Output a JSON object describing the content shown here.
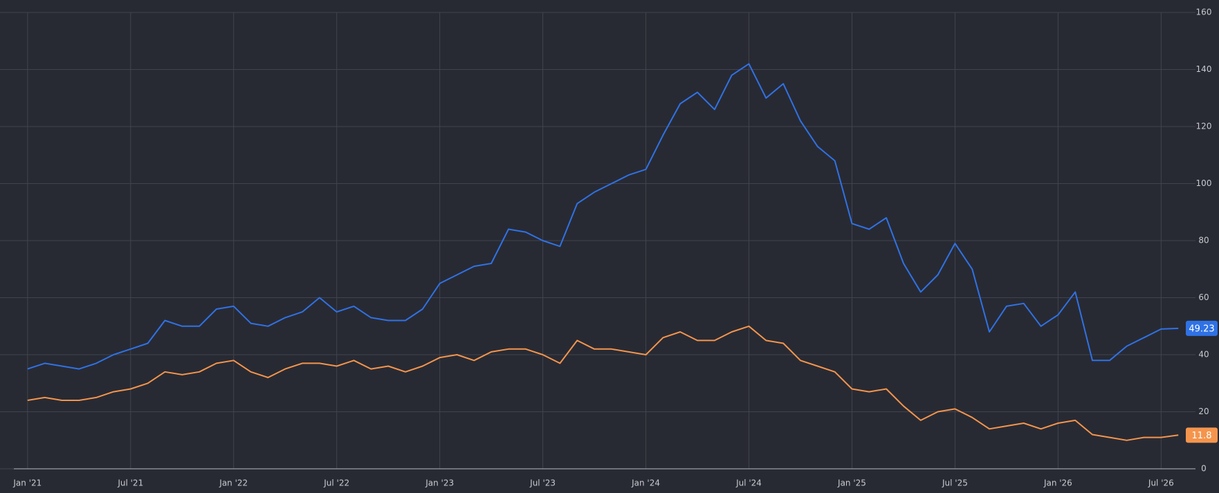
{
  "chart_data": {
    "type": "line",
    "x": [
      "2021-01",
      "2021-02",
      "2021-03",
      "2021-04",
      "2021-05",
      "2021-06",
      "2021-07",
      "2021-08",
      "2021-09",
      "2021-10",
      "2021-11",
      "2021-12",
      "2022-01",
      "2022-02",
      "2022-03",
      "2022-04",
      "2022-05",
      "2022-06",
      "2022-07",
      "2022-08",
      "2022-09",
      "2022-10",
      "2022-11",
      "2022-12",
      "2023-01",
      "2023-02",
      "2023-03",
      "2023-04",
      "2023-05",
      "2023-06",
      "2023-07",
      "2023-08",
      "2023-09",
      "2023-10",
      "2023-11",
      "2023-12",
      "2024-01",
      "2024-02",
      "2024-03",
      "2024-04",
      "2024-05",
      "2024-06",
      "2024-07",
      "2024-08",
      "2024-09",
      "2024-10",
      "2024-11",
      "2024-12",
      "2025-01",
      "2025-02",
      "2025-03",
      "2025-04",
      "2025-05",
      "2025-06",
      "2025-07",
      "2025-08",
      "2025-09",
      "2025-10",
      "2025-11",
      "2025-12",
      "2026-01",
      "2026-02",
      "2026-03",
      "2026-04",
      "2026-05",
      "2026-06",
      "2026-07",
      "2026-08"
    ],
    "series": [
      {
        "color": "#2f72e6",
        "values": [
          35,
          37,
          36,
          35,
          37,
          40,
          42,
          44,
          52,
          50,
          50,
          56,
          57,
          51,
          50,
          53,
          55,
          60,
          55,
          57,
          53,
          52,
          52,
          56,
          65,
          68,
          71,
          72,
          84,
          83,
          80,
          78,
          93,
          97,
          100,
          103,
          105,
          117,
          128,
          132,
          126,
          138,
          142,
          130,
          135,
          122,
          113,
          108,
          86,
          84,
          88,
          72,
          62,
          68,
          79,
          70,
          48,
          57,
          58,
          50,
          54,
          62,
          38,
          38,
          43,
          46,
          49,
          49.23
        ]
      },
      {
        "color": "#f5954d",
        "values": [
          24,
          25,
          24,
          24,
          25,
          27,
          28,
          30,
          34,
          33,
          34,
          37,
          38,
          34,
          32,
          35,
          37,
          37,
          36,
          38,
          35,
          36,
          34,
          36,
          39,
          40,
          38,
          41,
          42,
          42,
          40,
          37,
          45,
          42,
          42,
          41,
          40,
          46,
          48,
          45,
          45,
          48,
          50,
          45,
          44,
          38,
          36,
          34,
          28,
          27,
          28,
          22,
          17,
          20,
          21,
          18,
          14,
          15,
          16,
          14,
          16,
          17,
          12,
          11,
          10,
          11,
          11,
          11.8
        ]
      }
    ],
    "xlim": [
      "2020-12",
      "2026-09"
    ],
    "xticks": [
      {
        "value": "2021-01",
        "label": "Jan '21"
      },
      {
        "value": "2021-07",
        "label": "Jul '21"
      },
      {
        "value": "2022-01",
        "label": "Jan '22"
      },
      {
        "value": "2022-07",
        "label": "Jul '22"
      },
      {
        "value": "2023-01",
        "label": "Jan '23"
      },
      {
        "value": "2023-07",
        "label": "Jul '23"
      },
      {
        "value": "2024-01",
        "label": "Jan '24"
      },
      {
        "value": "2024-07",
        "label": "Jul '24"
      },
      {
        "value": "2025-01",
        "label": "Jan '25"
      },
      {
        "value": "2025-07",
        "label": "Jul '25"
      },
      {
        "value": "2026-01",
        "label": "Jan '26"
      },
      {
        "value": "2026-07",
        "label": "Jul '26"
      }
    ],
    "ylim": [
      0,
      160
    ],
    "yticks": [
      0,
      20,
      40,
      60,
      80,
      100,
      120,
      140,
      160
    ],
    "grid": true
  }
}
